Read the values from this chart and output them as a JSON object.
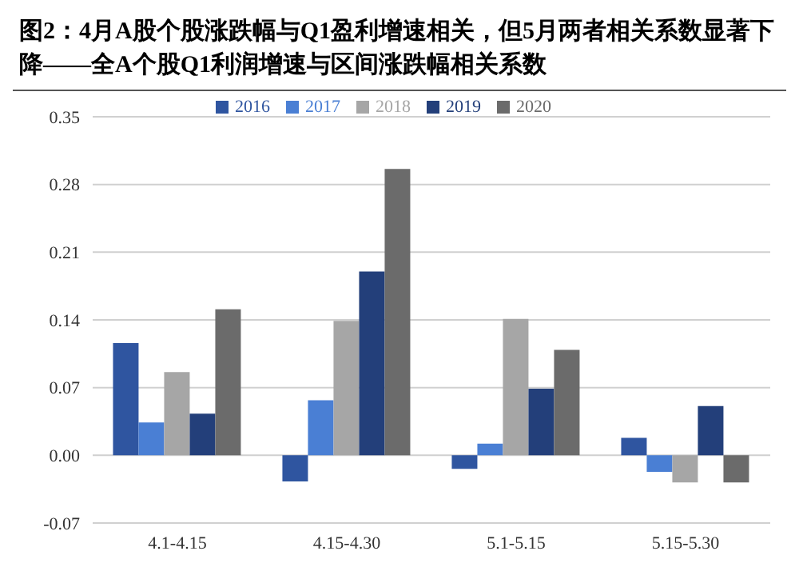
{
  "chart_data": {
    "type": "bar",
    "title": "图2：4月A股个股涨跌幅与Q1盈利增速相关，但5月两者相关系数显著下降——全A个股Q1利润增速与区间涨跌幅相关系数",
    "categories": [
      "4.1-4.15",
      "4.15-4.30",
      "5.1-5.15",
      "5.15-5.30"
    ],
    "series": [
      {
        "name": "2016",
        "color": "#2f55a0",
        "values": [
          0.116,
          -0.027,
          -0.014,
          0.018
        ]
      },
      {
        "name": "2017",
        "color": "#4a7fd4",
        "values": [
          0.034,
          0.057,
          0.012,
          -0.017
        ]
      },
      {
        "name": "2018",
        "color": "#a6a6a6",
        "values": [
          0.086,
          0.139,
          0.141,
          -0.028
        ]
      },
      {
        "name": "2019",
        "color": "#233f7a",
        "values": [
          0.043,
          0.19,
          0.069,
          0.051
        ]
      },
      {
        "name": "2020",
        "color": "#6b6b6b",
        "values": [
          0.151,
          0.296,
          0.109,
          -0.028
        ]
      }
    ],
    "ylim": [
      -0.07,
      0.35
    ],
    "yticks": [
      -0.07,
      {
        "value": 0,
        "label": "0.00"
      },
      0.07,
      0.14,
      0.21,
      0.28,
      0.35
    ],
    "grid": "y",
    "legend": "top"
  }
}
